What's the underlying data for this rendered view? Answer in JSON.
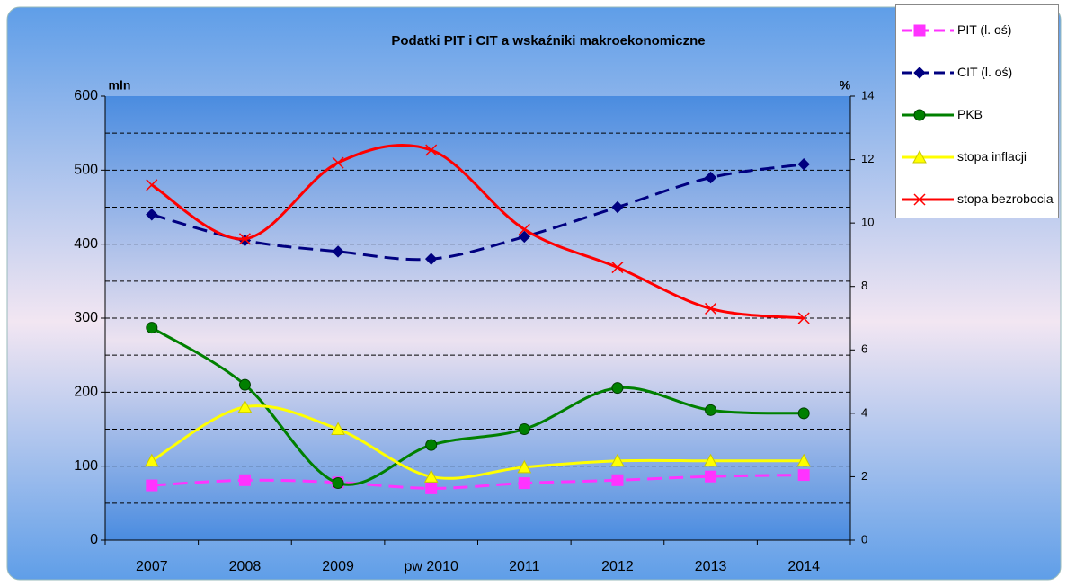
{
  "chart_data": {
    "type": "line",
    "title": "Podatki PIT i CIT a wskaźniki makroekonomiczne",
    "ylabel": "mln",
    "y2label": "%",
    "categories": [
      "2007",
      "2008",
      "2009",
      "pw 2010",
      "2011",
      "2012",
      "2013",
      "2014"
    ],
    "series": [
      {
        "name": "PIT (l. oś)",
        "color": "#ff33ff",
        "marker": "square",
        "dash": true,
        "axis": "y",
        "values": [
          74,
          81,
          78,
          70,
          77,
          81,
          86,
          88
        ]
      },
      {
        "name": "CIT (l. oś)",
        "color": "#000080",
        "marker": "diamond",
        "dash": true,
        "axis": "y",
        "values": [
          440,
          405,
          390,
          380,
          410,
          450,
          490,
          508
        ]
      },
      {
        "name": "PKB",
        "color": "#008000",
        "marker": "circle",
        "dash": false,
        "axis": "y2",
        "values": [
          6.7,
          4.9,
          1.8,
          3.0,
          3.5,
          4.8,
          4.1,
          4.0
        ]
      },
      {
        "name": "stopa inflacji",
        "color": "#ffff00",
        "marker": "triangle",
        "dash": false,
        "axis": "y2",
        "values": [
          2.5,
          4.2,
          3.5,
          2.0,
          2.3,
          2.5,
          2.5,
          2.5
        ]
      },
      {
        "name": "stopa bezrobocia",
        "color": "#ff0000",
        "marker": "x",
        "dash": false,
        "axis": "y2",
        "values": [
          11.2,
          9.5,
          11.9,
          12.3,
          9.8,
          8.6,
          7.3,
          7.0
        ]
      }
    ],
    "ylim": [
      0,
      600
    ],
    "yticks": [
      0,
      100,
      200,
      300,
      400,
      500,
      600
    ],
    "y2lim": [
      0,
      14
    ],
    "y2ticks": [
      0,
      2,
      4,
      6,
      8,
      10,
      12,
      14
    ],
    "ygrid": [
      50,
      100,
      150,
      200,
      250,
      300,
      350,
      400,
      450,
      500,
      550
    ],
    "smooth": true,
    "legend": "right"
  }
}
